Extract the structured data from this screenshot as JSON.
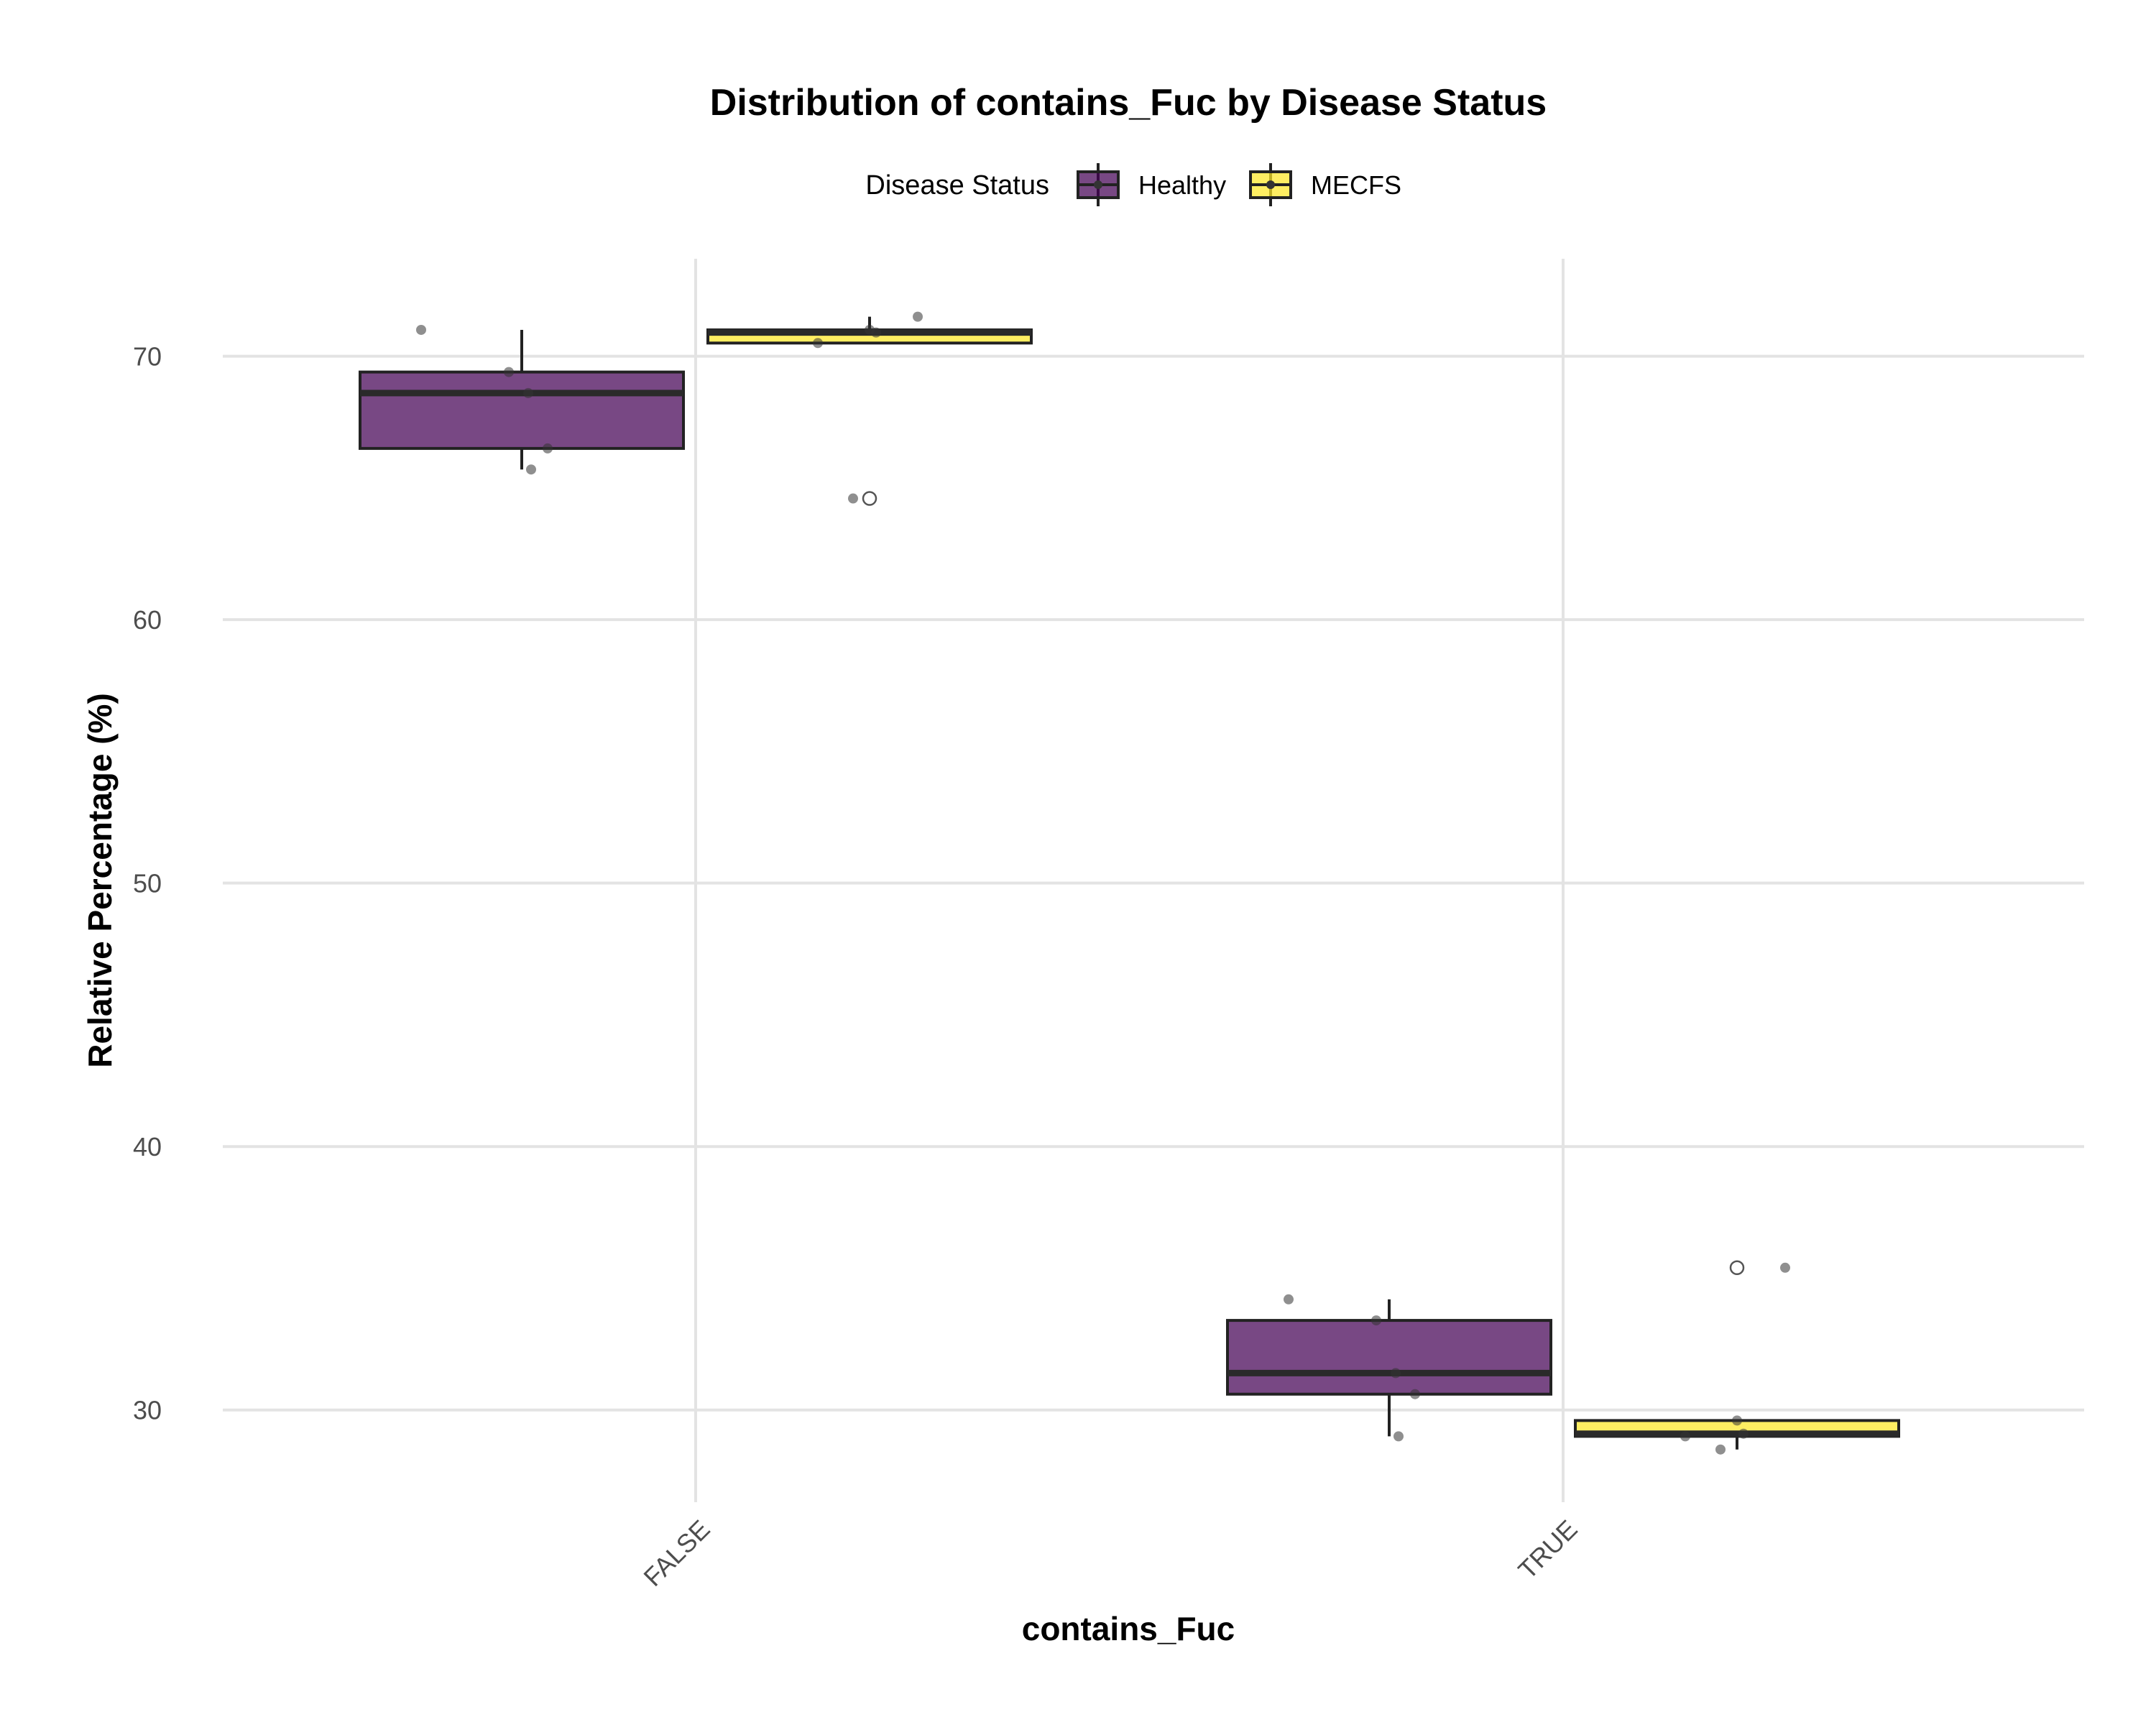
{
  "chart_data": {
    "type": "box",
    "title": "Distribution of contains_Fuc by Disease Status",
    "xlabel": "contains_Fuc",
    "ylabel": "Relative Percentage (%)",
    "categories": [
      "FALSE",
      "TRUE"
    ],
    "ylim": [
      26.5,
      73.7
    ],
    "yticks": [
      30,
      40,
      50,
      60,
      70
    ],
    "grid": true,
    "legend": {
      "title": "Disease Status",
      "position": "top"
    },
    "series": [
      {
        "name": "Healthy",
        "color": "#440154",
        "boxes": [
          {
            "category": "FALSE",
            "q1": 66.5,
            "median": 68.6,
            "q3": 69.4,
            "whisker_low": 65.7,
            "whisker_high": 71.0,
            "outliers": []
          },
          {
            "category": "TRUE",
            "q1": 30.6,
            "median": 31.4,
            "q3": 33.4,
            "whisker_low": 29.0,
            "whisker_high": 34.2,
            "outliers": []
          }
        ],
        "points": [
          {
            "category": "FALSE",
            "y": 71.0
          },
          {
            "category": "FALSE",
            "y": 69.4
          },
          {
            "category": "FALSE",
            "y": 68.6
          },
          {
            "category": "FALSE",
            "y": 66.5
          },
          {
            "category": "FALSE",
            "y": 65.7
          },
          {
            "category": "TRUE",
            "y": 34.2
          },
          {
            "category": "TRUE",
            "y": 33.4
          },
          {
            "category": "TRUE",
            "y": 31.4
          },
          {
            "category": "TRUE",
            "y": 30.6
          },
          {
            "category": "TRUE",
            "y": 29.0
          }
        ]
      },
      {
        "name": "MECFS",
        "color": "#FDE725",
        "boxes": [
          {
            "category": "FALSE",
            "q1": 70.5,
            "median": 70.9,
            "q3": 71.0,
            "whisker_low": 70.5,
            "whisker_high": 71.5,
            "outliers": [
              64.6
            ]
          },
          {
            "category": "TRUE",
            "q1": 29.0,
            "median": 29.1,
            "q3": 29.6,
            "whisker_low": 28.5,
            "whisker_high": 29.6,
            "outliers": [
              35.4
            ]
          }
        ],
        "points": [
          {
            "category": "FALSE",
            "y": 71.5
          },
          {
            "category": "FALSE",
            "y": 71.0
          },
          {
            "category": "FALSE",
            "y": 70.9
          },
          {
            "category": "FALSE",
            "y": 70.5
          },
          {
            "category": "FALSE",
            "y": 64.6
          },
          {
            "category": "TRUE",
            "y": 35.4
          },
          {
            "category": "TRUE",
            "y": 29.6
          },
          {
            "category": "TRUE",
            "y": 29.1
          },
          {
            "category": "TRUE",
            "y": 29.0
          },
          {
            "category": "TRUE",
            "y": 28.5
          }
        ]
      }
    ]
  }
}
